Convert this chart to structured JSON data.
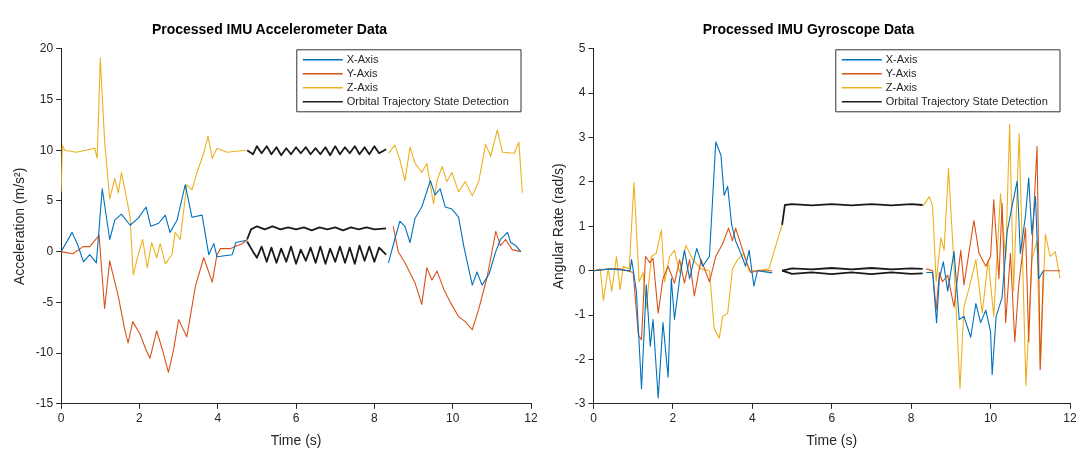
{
  "chart_data": [
    {
      "type": "line",
      "title": "Processed IMU Accelerometer Data",
      "xlabel": "Time (s)",
      "ylabel": "Acceleration (m/s²)",
      "xlim": [
        0,
        12
      ],
      "ylim": [
        -15,
        20
      ],
      "xticks": [
        0,
        2,
        4,
        6,
        8,
        10,
        12
      ],
      "yticks": [
        -15,
        -10,
        -5,
        0,
        5,
        10,
        15,
        20
      ],
      "legend": "top right",
      "marker": "none",
      "line_style": "solid",
      "series": [
        {
          "name": "X-Axis",
          "color": "#0072bd",
          "x": [
            0,
            0.28,
            0.43,
            0.57,
            0.73,
            0.9,
            1.05,
            1.24,
            1.37,
            1.54,
            1.76,
            1.97,
            2.17,
            2.29,
            2.49,
            2.66,
            2.78,
            2.96,
            3.17,
            3.34,
            3.6,
            3.77,
            3.9,
            3.98,
            4.37,
            4.46,
            4.71,
            6.5,
            8.36,
            8.52,
            8.65,
            8.78,
            8.91,
            9.04,
            9.21,
            9.43,
            9.55,
            9.68,
            9.81,
            9.98,
            10.15,
            10.28,
            10.5,
            10.62,
            10.75,
            10.93,
            11.1,
            11.22,
            11.4,
            11.48,
            11.61,
            11.74
          ],
          "values": [
            0,
            1.9,
            0.6,
            -1,
            -0.3,
            -1.1,
            6.2,
            1.2,
            3.1,
            3.7,
            2.6,
            3.3,
            4.4,
            2.5,
            2.8,
            3.6,
            1.9,
            3.1,
            6.6,
            3.4,
            3.6,
            -0.3,
            0.8,
            -0.5,
            -0.3,
            0.9,
            1.1,
            null,
            -1.1,
            1.2,
            3,
            2.5,
            0.9,
            3.3,
            4.4,
            7,
            5.6,
            6.2,
            4.4,
            4.2,
            3.4,
            0.6,
            -3.3,
            -2,
            -3.3,
            -2.2,
            0,
            1.2,
            1.9,
            0.9,
            0.6,
            0
          ]
        },
        {
          "name": "Y-Axis",
          "color": "#d95319",
          "x": [
            0,
            0.3,
            0.56,
            0.73,
            0.97,
            1.11,
            1.24,
            1.46,
            1.63,
            1.71,
            1.83,
            2.01,
            2.17,
            2.27,
            2.44,
            2.61,
            2.74,
            2.87,
            3.0,
            3.21,
            3.43,
            3.64,
            3.86,
            3.98,
            4.07,
            4.33,
            4.63,
            4.76,
            6.5,
            8.48,
            8.61,
            8.78,
            9.04,
            9.21,
            9.34,
            9.47,
            9.6,
            9.77,
            9.94,
            10.15,
            10.32,
            10.5,
            10.67,
            10.88,
            11.1,
            11.22,
            11.35,
            11.52,
            11.74
          ],
          "values": [
            0,
            -0.2,
            0.5,
            0.5,
            1.6,
            -5.6,
            -0.9,
            -4.4,
            -7.8,
            -9,
            -6.9,
            -8.1,
            -9.7,
            -10.5,
            -7.8,
            -10,
            -11.9,
            -9.7,
            -6.7,
            -8.4,
            -3.4,
            -0.6,
            -3,
            -0.3,
            0.3,
            0.3,
            0.8,
            1.2,
            null,
            2.5,
            0,
            -1.1,
            -3.1,
            -5.2,
            -1.6,
            -2.8,
            -1.9,
            -3.7,
            -5,
            -6.4,
            -6.9,
            -7.7,
            -5.6,
            -2.5,
            2,
            0.6,
            1.2,
            0.2,
            0
          ]
        },
        {
          "name": "Z-Axis",
          "color": "#edb120",
          "x": [
            0,
            0.03,
            0.09,
            0.39,
            0.86,
            0.92,
            1.0,
            1.11,
            1.24,
            1.37,
            1.46,
            1.54,
            1.67,
            1.76,
            1.84,
            1.97,
            2.08,
            2.2,
            2.31,
            2.44,
            2.53,
            2.66,
            2.83,
            2.91,
            3.04,
            3.21,
            3.34,
            3.47,
            3.64,
            3.75,
            3.86,
            3.98,
            4.24,
            4.71,
            6.5,
            8.36,
            8.52,
            8.65,
            8.78,
            8.91,
            9.04,
            9.21,
            9.34,
            9.51,
            9.6,
            9.73,
            9.85,
            9.98,
            10.15,
            10.32,
            10.5,
            10.67,
            10.84,
            10.97,
            11.14,
            11.27,
            11.57,
            11.69,
            11.78
          ],
          "values": [
            5.9,
            10.5,
            10,
            9.8,
            10.2,
            9.2,
            19.1,
            10.9,
            5.2,
            7.2,
            5.8,
            7.8,
            5.3,
            3.4,
            -2.3,
            -0.3,
            1.2,
            -1.6,
            0.9,
            -0.6,
            0.8,
            -1.2,
            -0.3,
            1.9,
            1.2,
            6.6,
            6.1,
            7.8,
            9.7,
            11.4,
            9.2,
            10.2,
            9.8,
            10,
            null,
            9.7,
            10.5,
            9.1,
            7,
            10.3,
            8.7,
            7.8,
            8.7,
            4.7,
            7,
            8.4,
            6.9,
            7.8,
            5.9,
            6.9,
            5.5,
            7,
            10.6,
            9.4,
            12,
            9.8,
            9.7,
            10.8,
            5.8
          ]
        },
        {
          "name": "Orbital Trajectory State Detection",
          "color": "#1a1a1a",
          "x": [
            4.75,
            4.9,
            5.0,
            5.12,
            5.25,
            5.37,
            5.5,
            5.62,
            5.75,
            5.87,
            6.0,
            6.12,
            6.25,
            6.37,
            6.5,
            6.62,
            6.75,
            6.87,
            7.0,
            7.12,
            7.25,
            7.37,
            7.5,
            7.62,
            7.75,
            7.87,
            8.0,
            8.12,
            8.3
          ],
          "values": [
            10,
            9.6,
            10.4,
            9.7,
            10.4,
            9.6,
            10.3,
            9.5,
            10.2,
            9.6,
            10.3,
            9.7,
            10.3,
            9.6,
            10.2,
            9.6,
            10.3,
            9.5,
            10.4,
            9.6,
            10.3,
            9.7,
            10.4,
            9.6,
            10.3,
            9.6,
            10.4,
            9.7,
            10.1
          ]
        },
        {
          "color": "#1a1a1a",
          "x": [
            4.75,
            4.85,
            5.0,
            5.2,
            5.4,
            5.6,
            5.8,
            6.0,
            6.2,
            6.4,
            6.6,
            6.8,
            7.0,
            7.2,
            7.4,
            7.6,
            7.8,
            8.0,
            8.3
          ],
          "values": [
            1.2,
            2.2,
            2.5,
            2.2,
            2.5,
            2.2,
            2.4,
            2.2,
            2.4,
            2.1,
            2.4,
            2.2,
            2.4,
            2.1,
            2.4,
            2.2,
            2.4,
            2.2,
            2.3
          ]
        },
        {
          "color": "#1a1a1a",
          "x": [
            4.75,
            4.9,
            5.0,
            5.12,
            5.25,
            5.37,
            5.5,
            5.62,
            5.75,
            5.87,
            6.0,
            6.12,
            6.25,
            6.37,
            6.5,
            6.62,
            6.75,
            6.87,
            7.0,
            7.12,
            7.25,
            7.37,
            7.5,
            7.62,
            7.75,
            7.87,
            8.0,
            8.12,
            8.3
          ],
          "values": [
            1,
            0,
            -0.6,
            0.5,
            -1,
            0.4,
            -1.1,
            0.3,
            -1,
            0.5,
            -1.2,
            0.2,
            -0.9,
            0.4,
            -1.1,
            0.5,
            -1.2,
            0.3,
            -1,
            0.5,
            -1.1,
            0.4,
            -1.2,
            0.6,
            -0.9,
            0.5,
            -1,
            0.4,
            -0.3
          ]
        }
      ]
    },
    {
      "type": "line",
      "title": "Processed IMU Gyroscope Data",
      "xlabel": "Time (s)",
      "ylabel": "Angular Rate (rad/s)",
      "xlim": [
        0,
        12
      ],
      "ylim": [
        -3,
        5
      ],
      "xticks": [
        0,
        2,
        4,
        6,
        8,
        10,
        12
      ],
      "yticks": [
        -3,
        -2,
        -1,
        0,
        1,
        2,
        3,
        4,
        5
      ],
      "legend": "top right",
      "marker": "none",
      "line_style": "solid",
      "series": [
        {
          "name": "X-Axis",
          "color": "#0072bd",
          "x": [
            0,
            0.42,
            0.92,
            0.96,
            1.08,
            1.21,
            1.33,
            1.43,
            1.5,
            1.63,
            1.75,
            1.88,
            1.96,
            2.04,
            2.17,
            2.29,
            2.42,
            2.6,
            2.75,
            2.92,
            3.08,
            3.21,
            3.29,
            3.38,
            3.48,
            3.58,
            3.71,
            3.83,
            3.92,
            4.04,
            4.13,
            4.5,
            6.5,
            8.38,
            8.54,
            8.64,
            8.71,
            8.81,
            8.92,
            9.08,
            9.21,
            9.33,
            9.5,
            9.63,
            9.75,
            9.88,
            10.0,
            10.04,
            10.14,
            10.29,
            10.42,
            10.54,
            10.67,
            10.75,
            10.88,
            10.96,
            11.04,
            11.13,
            11.21,
            11.33
          ],
          "values": [
            0,
            0.04,
            0,
            0.25,
            -0.46,
            -2.66,
            -0.32,
            -1.7,
            -1.1,
            -2.87,
            -1.17,
            -2.4,
            -0.18,
            -1.1,
            -0.18,
            0.46,
            -0.18,
            0.5,
            0.1,
            0.32,
            2.9,
            2.6,
            1.7,
            1.9,
            1.03,
            0.67,
            0.39,
            0.1,
            0.46,
            -0.35,
            0,
            -0.05,
            null,
            -0.04,
            -0.04,
            -1.17,
            -0.18,
            0.2,
            -0.46,
            0.43,
            -1.1,
            -1.03,
            -1.5,
            -0.74,
            -1.17,
            -0.89,
            -1.38,
            -2.34,
            -1.03,
            -0.6,
            0.89,
            1.45,
            2.02,
            0.39,
            1.24,
            2.09,
            0.82,
            1.67,
            -0.18,
            0
          ]
        },
        {
          "name": "Y-Axis",
          "color": "#d95319",
          "x": [
            0,
            0.42,
            0.67,
            1.0,
            1.13,
            1.21,
            1.31,
            1.42,
            1.5,
            1.63,
            1.75,
            1.88,
            2.04,
            2.17,
            2.29,
            2.42,
            2.54,
            2.71,
            2.92,
            3.08,
            3.25,
            3.4,
            3.5,
            3.58,
            3.71,
            3.83,
            3.96,
            4.13,
            4.5,
            6.5,
            8.38,
            8.54,
            8.63,
            8.71,
            8.79,
            8.92,
            9.08,
            9.25,
            9.33,
            9.58,
            9.71,
            9.88,
            10.0,
            10.08,
            10.21,
            10.29,
            10.38,
            10.5,
            10.61,
            10.71,
            10.88,
            10.96,
            11.06,
            11.17,
            11.25,
            11.33,
            11.75
          ],
          "values": [
            0,
            0.04,
            0.04,
            -0.04,
            -1.45,
            -1.56,
            0.32,
            0.18,
            0.28,
            -0.96,
            -0.18,
            0.1,
            -0.28,
            0.25,
            -0.28,
            0.25,
            -0.57,
            0.25,
            -0.25,
            0.32,
            0.6,
            0.96,
            0.67,
            0.96,
            0.6,
            0.25,
            -0.04,
            0,
            0,
            null,
            0.04,
            0,
            -0.89,
            -0.04,
            -0.25,
            -0.1,
            -0.82,
            0.46,
            -0.32,
            1.13,
            0.39,
            0.1,
            0.32,
            1.6,
            -0.18,
            1.52,
            -1.17,
            0.39,
            -1.6,
            -0.32,
            0.96,
            -1.6,
            0.82,
            2.8,
            -2.23,
            0,
            0
          ]
        },
        {
          "name": "Z-Axis",
          "color": "#edb120",
          "x": [
            0,
            0.17,
            0.25,
            0.37,
            0.46,
            0.58,
            0.67,
            0.75,
            0.9,
            1.02,
            1.15,
            1.25,
            1.33,
            1.46,
            1.58,
            1.71,
            1.79,
            1.92,
            2.04,
            2.17,
            2.33,
            2.5,
            2.71,
            2.92,
            3.04,
            3.17,
            3.25,
            3.38,
            3.5,
            3.63,
            3.79,
            3.92,
            4.08,
            4.42,
            4.58,
            4.75,
            6.5,
            8.29,
            8.46,
            8.54,
            8.63,
            8.75,
            8.83,
            8.94,
            9.08,
            9.23,
            9.33,
            9.46,
            9.63,
            9.79,
            9.94,
            10.08,
            10.25,
            10.38,
            10.48,
            10.58,
            10.72,
            10.89,
            11.04,
            11.17,
            11.25,
            11.38,
            11.5,
            11.63,
            11.75
          ],
          "values": [
            0,
            0.04,
            -0.67,
            0.04,
            -0.46,
            0.32,
            -0.43,
            0.1,
            0.04,
            1.99,
            -0.25,
            -0.04,
            -0.85,
            0.32,
            0.39,
            0.92,
            -0.25,
            0.32,
            0.46,
            -0.04,
            0.57,
            0.25,
            0.04,
            0,
            -1.31,
            -1.52,
            -1.03,
            -0.96,
            0.04,
            0.25,
            0.39,
            0,
            0,
            0.04,
            0.53,
            1.03,
            null,
            1.45,
            1.67,
            1.45,
            -0.25,
            0.74,
            0.46,
            2.3,
            0.1,
            -2.66,
            -0.82,
            -0.39,
            0.25,
            -0.96,
            0.25,
            -1.03,
            1.74,
            0.25,
            3.3,
            -0.46,
            3.09,
            -2.59,
            0.25,
            0.67,
            -2.2,
            0.82,
            0.32,
            0.43,
            -0.18
          ]
        },
        {
          "name": "Orbital Trajectory State Detection",
          "color": "#1a1a1a",
          "x": [
            4.75,
            4.82,
            5.0,
            5.5,
            6.0,
            6.5,
            7.0,
            7.5,
            8.0,
            8.29
          ],
          "values": [
            1.03,
            1.48,
            1.5,
            1.47,
            1.5,
            1.47,
            1.5,
            1.47,
            1.5,
            1.48
          ]
        },
        {
          "color": "#1a1a1a",
          "x": [
            4.75,
            5.0,
            5.5,
            6.0,
            6.5,
            7.0,
            7.5,
            8.0,
            8.29
          ],
          "values": [
            0,
            0.05,
            0.03,
            0.06,
            0.03,
            0.06,
            0.03,
            0.05,
            0.04
          ]
        },
        {
          "color": "#1a1a1a",
          "x": [
            4.75,
            5.0,
            5.5,
            6.0,
            6.5,
            7.0,
            7.5,
            8.0,
            8.29
          ],
          "values": [
            0,
            -0.07,
            -0.04,
            -0.08,
            -0.04,
            -0.08,
            -0.04,
            -0.07,
            -0.06
          ]
        }
      ]
    }
  ]
}
